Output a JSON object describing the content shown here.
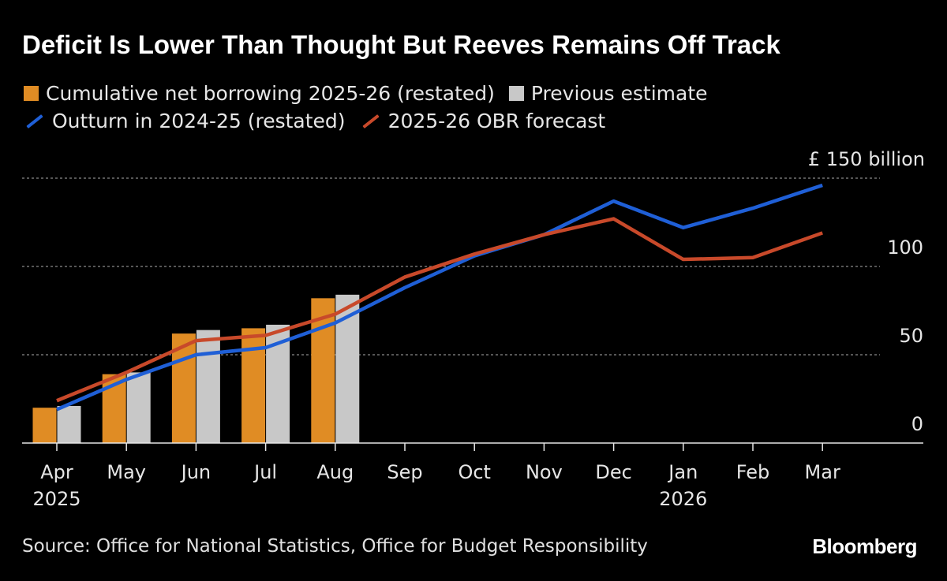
{
  "title": "Deficit Is Lower Than Thought But Reeves Remains Off Track",
  "legend": {
    "row1": [
      {
        "label": "Cumulative net borrowing 2025-26 (restated)",
        "color": "#e08c24",
        "kind": "bar"
      },
      {
        "label": "Previous estimate",
        "color": "#c8c8c8",
        "kind": "bar"
      }
    ],
    "row2": [
      {
        "label": "Outturn in 2024-25 (restated)",
        "color": "#1f5fd6",
        "kind": "line"
      },
      {
        "label": "2025-26 OBR forecast",
        "color": "#c8492a",
        "kind": "line"
      }
    ]
  },
  "source": "Source: Office for National Statistics, Office for Budget Responsibility",
  "brand": "Bloomberg",
  "chart_data": {
    "type": "bar+line",
    "title": "Deficit Is Lower Than Thought But Reeves Remains Off Track",
    "categories": [
      "Apr",
      "May",
      "Jun",
      "Jul",
      "Aug",
      "Sep",
      "Oct",
      "Nov",
      "Dec",
      "Jan",
      "Feb",
      "Mar"
    ],
    "year_labels": {
      "Apr": "2025",
      "Jan": "2026"
    },
    "y_unit_label": "£ 150 billion",
    "yticks": [
      {
        "value": 150,
        "label": "£ 150 billion"
      },
      {
        "value": 100,
        "label": "100"
      },
      {
        "value": 50,
        "label": "50"
      },
      {
        "value": 0,
        "label": "0"
      }
    ],
    "ylim": [
      0,
      150
    ],
    "grid": true,
    "bar_series": [
      {
        "name": "Cumulative net borrowing 2025-26 (restated)",
        "color": "#e08c24",
        "values": [
          20,
          39,
          62,
          65,
          82
        ]
      },
      {
        "name": "Previous estimate",
        "color": "#c8c8c8",
        "values": [
          21,
          40,
          64,
          67,
          84
        ]
      }
    ],
    "line_series": [
      {
        "name": "Outturn in 2024-25 (restated)",
        "color": "#1f5fd6",
        "values": [
          19,
          36,
          50,
          54,
          68,
          88,
          106,
          118,
          137,
          122,
          133,
          146
        ]
      },
      {
        "name": "2025-26 OBR forecast",
        "color": "#c8492a",
        "values": [
          24,
          40,
          58,
          61,
          73,
          94,
          107,
          118,
          127,
          104,
          105,
          119
        ]
      }
    ]
  }
}
